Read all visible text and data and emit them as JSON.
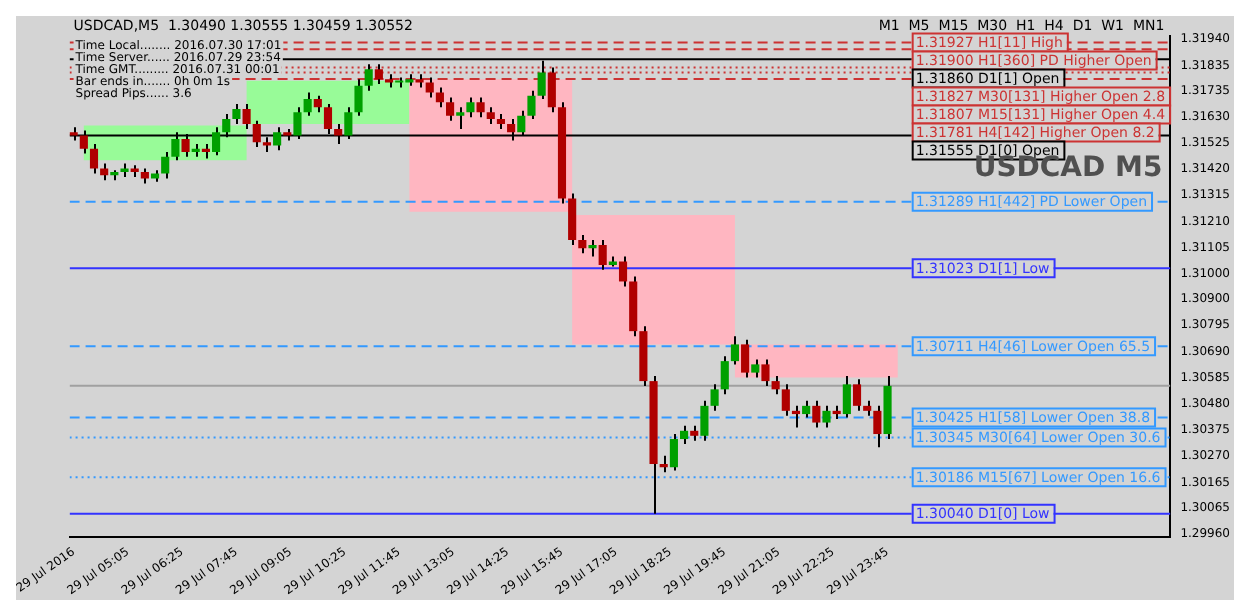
{
  "chart_data": {
    "type": "candlestick",
    "title": "USDCAD,M5  1.30490 1.30555 1.30459 1.30552",
    "annotations": [
      "Time Local........ 2016.07.30 17:01",
      "Time Server...... 2016.07.29 23:54",
      "Time GMT......... 2016.07.31 00:01",
      "Bar ends in....... 0h 0m 1s",
      "Spread Pips...... 3.6",
      "M1  M5  M15  M30  H1  H4  D1  W1  MN1",
      "USDCAD M5"
    ],
    "x": [
      "2016-07-29T03:45",
      "2016-07-29T04:00",
      "2016-07-29T04:15",
      "2016-07-29T04:30",
      "2016-07-29T04:45",
      "2016-07-29T05:00",
      "2016-07-29T05:15",
      "2016-07-29T05:30",
      "2016-07-29T05:45",
      "2016-07-29T06:00",
      "2016-07-29T06:15",
      "2016-07-29T06:30",
      "2016-07-29T06:45",
      "2016-07-29T07:00",
      "2016-07-29T07:15",
      "2016-07-29T07:30",
      "2016-07-29T07:45",
      "2016-07-29T08:00",
      "2016-07-29T08:15",
      "2016-07-29T08:30",
      "2016-07-29T08:45",
      "2016-07-29T09:00",
      "2016-07-29T09:15",
      "2016-07-29T09:30",
      "2016-07-29T09:45",
      "2016-07-29T10:00",
      "2016-07-29T10:15",
      "2016-07-29T10:30",
      "2016-07-29T10:45",
      "2016-07-29T11:00",
      "2016-07-29T11:15",
      "2016-07-29T11:30",
      "2016-07-29T11:45",
      "2016-07-29T12:00",
      "2016-07-29T12:15",
      "2016-07-29T12:30",
      "2016-07-29T12:45",
      "2016-07-29T13:00",
      "2016-07-29T13:15",
      "2016-07-29T13:30",
      "2016-07-29T13:45",
      "2016-07-29T14:00",
      "2016-07-29T14:15",
      "2016-07-29T14:30",
      "2016-07-29T14:45",
      "2016-07-29T15:00",
      "2016-07-29T15:15",
      "2016-07-29T15:30",
      "2016-07-29T15:45",
      "2016-07-29T16:00",
      "2016-07-29T16:15",
      "2016-07-29T16:30",
      "2016-07-29T16:45",
      "2016-07-29T17:00",
      "2016-07-29T17:15",
      "2016-07-29T17:30",
      "2016-07-29T17:45",
      "2016-07-29T18:00",
      "2016-07-29T18:15",
      "2016-07-29T18:30",
      "2016-07-29T18:45",
      "2016-07-29T19:00",
      "2016-07-29T19:15",
      "2016-07-29T19:30",
      "2016-07-29T19:45",
      "2016-07-29T20:00",
      "2016-07-29T20:15",
      "2016-07-29T20:30",
      "2016-07-29T20:45",
      "2016-07-29T21:00",
      "2016-07-29T21:15",
      "2016-07-29T21:30",
      "2016-07-29T21:45",
      "2016-07-29T22:00",
      "2016-07-29T22:15",
      "2016-07-29T22:30",
      "2016-07-29T22:45",
      "2016-07-29T23:00",
      "2016-07-29T23:15",
      "2016-07-29T23:30",
      "2016-07-29T23:45"
    ],
    "ohlc": [
      [
        1.31568,
        1.31588,
        1.31535,
        1.31555
      ],
      [
        1.31555,
        1.31575,
        1.31482,
        1.31501
      ],
      [
        1.31501,
        1.31521,
        1.31402,
        1.31422
      ],
      [
        1.31422,
        1.31442,
        1.31375,
        1.31395
      ],
      [
        1.31395,
        1.31415,
        1.31375,
        1.31408
      ],
      [
        1.31408,
        1.31442,
        1.31388,
        1.31422
      ],
      [
        1.31422,
        1.31435,
        1.31388,
        1.31408
      ],
      [
        1.31408,
        1.31422,
        1.31362,
        1.31382
      ],
      [
        1.31382,
        1.31415,
        1.31369,
        1.31402
      ],
      [
        1.31402,
        1.31488,
        1.31382,
        1.31469
      ],
      [
        1.31469,
        1.31568,
        1.31455,
        1.31541
      ],
      [
        1.31541,
        1.31561,
        1.31469,
        1.31488
      ],
      [
        1.31488,
        1.31521,
        1.31469,
        1.31501
      ],
      [
        1.31501,
        1.31521,
        1.31462,
        1.31488
      ],
      [
        1.31488,
        1.31588,
        1.31475,
        1.31568
      ],
      [
        1.31568,
        1.31641,
        1.31548,
        1.31621
      ],
      [
        1.31621,
        1.31681,
        1.31601,
        1.31661
      ],
      [
        1.31661,
        1.31681,
        1.31581,
        1.31601
      ],
      [
        1.31601,
        1.31614,
        1.31508,
        1.31528
      ],
      [
        1.31528,
        1.31548,
        1.31488,
        1.31515
      ],
      [
        1.31515,
        1.31588,
        1.31495,
        1.31568
      ],
      [
        1.31568,
        1.31581,
        1.31535,
        1.31555
      ],
      [
        1.31555,
        1.31668,
        1.31541,
        1.31648
      ],
      [
        1.31648,
        1.31727,
        1.31634,
        1.31701
      ],
      [
        1.31701,
        1.31714,
        1.31648,
        1.31668
      ],
      [
        1.31668,
        1.31681,
        1.31561,
        1.31581
      ],
      [
        1.31581,
        1.31601,
        1.31521,
        1.31555
      ],
      [
        1.31555,
        1.31668,
        1.31541,
        1.31648
      ],
      [
        1.31648,
        1.3178,
        1.31634,
        1.31754
      ],
      [
        1.31754,
        1.3184,
        1.31734,
        1.3182
      ],
      [
        1.3182,
        1.3184,
        1.31761,
        1.3178
      ],
      [
        1.3178,
        1.318,
        1.31747,
        1.31767
      ],
      [
        1.31767,
        1.31787,
        1.31747,
        1.31767
      ],
      [
        1.31767,
        1.318,
        1.31754,
        1.3178
      ],
      [
        1.3178,
        1.318,
        1.31747,
        1.31767
      ],
      [
        1.31767,
        1.31787,
        1.31707,
        1.31727
      ],
      [
        1.31727,
        1.31747,
        1.31668,
        1.31688
      ],
      [
        1.31688,
        1.31707,
        1.31614,
        1.31634
      ],
      [
        1.31634,
        1.31668,
        1.31581,
        1.31648
      ],
      [
        1.31648,
        1.31707,
        1.31628,
        1.31688
      ],
      [
        1.31688,
        1.31707,
        1.31628,
        1.31648
      ],
      [
        1.31648,
        1.31668,
        1.31601,
        1.31621
      ],
      [
        1.31621,
        1.31641,
        1.31581,
        1.31601
      ],
      [
        1.31601,
        1.31621,
        1.31535,
        1.31568
      ],
      [
        1.31568,
        1.31654,
        1.31555,
        1.31634
      ],
      [
        1.31634,
        1.31734,
        1.31621,
        1.31714
      ],
      [
        1.31714,
        1.31854,
        1.31701,
        1.31807
      ],
      [
        1.31807,
        1.31827,
        1.31648,
        1.31668
      ],
      [
        1.31668,
        1.31688,
        1.31282,
        1.31302
      ],
      [
        1.31302,
        1.31322,
        1.31116,
        1.31136
      ],
      [
        1.31136,
        1.31156,
        1.31083,
        1.31103
      ],
      [
        1.31103,
        1.31136,
        1.3107,
        1.31116
      ],
      [
        1.31116,
        1.31136,
        1.31017,
        1.31036
      ],
      [
        1.31036,
        1.3107,
        1.3103,
        1.3105
      ],
      [
        1.3105,
        1.3107,
        1.3095,
        1.3097
      ],
      [
        1.3097,
        1.3099,
        1.30751,
        1.30771
      ],
      [
        1.30771,
        1.30791,
        1.30551,
        1.30571
      ],
      [
        1.30571,
        1.30591,
        1.3004,
        1.30239
      ],
      [
        1.30239,
        1.30272,
        1.30206,
        1.30226
      ],
      [
        1.30226,
        1.30359,
        1.30213,
        1.30339
      ],
      [
        1.30339,
        1.30392,
        1.30319,
        1.30372
      ],
      [
        1.30372,
        1.30392,
        1.30332,
        1.30352
      ],
      [
        1.30352,
        1.30492,
        1.30332,
        1.30472
      ],
      [
        1.30472,
        1.30558,
        1.30452,
        1.30538
      ],
      [
        1.30538,
        1.30671,
        1.30518,
        1.30651
      ],
      [
        1.30651,
        1.30751,
        1.30638,
        1.30718
      ],
      [
        1.30718,
        1.30737,
        1.30585,
        1.30605
      ],
      [
        1.30605,
        1.30658,
        1.30585,
        1.30638
      ],
      [
        1.30638,
        1.30658,
        1.30551,
        1.30571
      ],
      [
        1.30571,
        1.30591,
        1.30518,
        1.30538
      ],
      [
        1.30538,
        1.30558,
        1.30432,
        1.30452
      ],
      [
        1.30452,
        1.30472,
        1.30385,
        1.30439
      ],
      [
        1.30439,
        1.30492,
        1.30425,
        1.30472
      ],
      [
        1.30472,
        1.30492,
        1.30385,
        1.30405
      ],
      [
        1.30405,
        1.30472,
        1.30385,
        1.30452
      ],
      [
        1.30452,
        1.30472,
        1.30419,
        1.30439
      ],
      [
        1.30439,
        1.30591,
        1.30425,
        1.30558
      ],
      [
        1.30558,
        1.30578,
        1.30452,
        1.30472
      ],
      [
        1.30472,
        1.30492,
        1.30432,
        1.30452
      ],
      [
        1.30452,
        1.30472,
        1.30306,
        1.30359
      ],
      [
        1.30359,
        1.30591,
        1.30339,
        1.30552
      ]
    ],
    "series": [
      {
        "type": "bar",
        "x": [
          "2016-07-29T06:00",
          "2016-07-29T10:00",
          "2016-07-29T14:00",
          "2016-07-29T18:00",
          "2016-07-29T22:00"
        ],
        "base": [
          1.31455,
          1.31601,
          1.31249,
          1.30718,
          1.30585
        ],
        "values": [
          0.0014,
          0.00173,
          0.00531,
          0.00518,
          0.00133
        ],
        "colors": [
          "#98fb98",
          "#98fb98",
          "#ffb6c1",
          "#ffb6c1",
          "#ffb6c1"
        ]
      }
    ],
    "xlim": [
      "2016-07-29T03:39",
      "2016-07-30T06:42"
    ],
    "xticks": [
      {
        "value": "2016-07-29T03:45",
        "label": "29 Jul 2016"
      },
      {
        "value": "2016-07-29T05:05",
        "label": "29 Jul 05:05"
      },
      {
        "value": "2016-07-29T06:25",
        "label": "29 Jul 06:25"
      },
      {
        "value": "2016-07-29T07:45",
        "label": "29 Jul 07:45"
      },
      {
        "value": "2016-07-29T09:05",
        "label": "29 Jul 09:05"
      },
      {
        "value": "2016-07-29T10:25",
        "label": "29 Jul 10:25"
      },
      {
        "value": "2016-07-29T11:45",
        "label": "29 Jul 11:45"
      },
      {
        "value": "2016-07-29T13:05",
        "label": "29 Jul 13:05"
      },
      {
        "value": "2016-07-29T14:25",
        "label": "29 Jul 14:25"
      },
      {
        "value": "2016-07-29T15:45",
        "label": "29 Jul 15:45"
      },
      {
        "value": "2016-07-29T17:05",
        "label": "29 Jul 17:05"
      },
      {
        "value": "2016-07-29T18:25",
        "label": "29 Jul 18:25"
      },
      {
        "value": "2016-07-29T19:45",
        "label": "29 Jul 19:45"
      },
      {
        "value": "2016-07-29T21:05",
        "label": "29 Jul 21:05"
      },
      {
        "value": "2016-07-29T22:25",
        "label": "29 Jul 22:25"
      },
      {
        "value": "2016-07-29T23:45",
        "label": "29 Jul 23:45"
      }
    ],
    "ylim": [
      1.29947,
      1.31953
    ],
    "yticks": [
      {
        "value": 1.2996,
        "label": "1.29960"
      },
      {
        "value": 1.30065,
        "label": "1.30065"
      },
      {
        "value": 1.30165,
        "label": "1.30165"
      },
      {
        "value": 1.3027,
        "label": "1.30270"
      },
      {
        "value": 1.30375,
        "label": "1.30375"
      },
      {
        "value": 1.3048,
        "label": "1.30480"
      },
      {
        "value": 1.30585,
        "label": "1.30585"
      },
      {
        "value": 1.3069,
        "label": "1.30690"
      },
      {
        "value": 1.30795,
        "label": "1.30795"
      },
      {
        "value": 1.309,
        "label": "1.30900"
      },
      {
        "value": 1.31,
        "label": "1.31000"
      },
      {
        "value": 1.31105,
        "label": "1.31105"
      },
      {
        "value": 1.3121,
        "label": "1.31210"
      },
      {
        "value": 1.31315,
        "label": "1.31315"
      },
      {
        "value": 1.3142,
        "label": "1.31420"
      },
      {
        "value": 1.31525,
        "label": "1.31525"
      },
      {
        "value": 1.3163,
        "label": "1.31630"
      },
      {
        "value": 1.31735,
        "label": "1.31735"
      },
      {
        "value": 1.31835,
        "label": "1.31835"
      },
      {
        "value": 1.3194,
        "label": "1.31940"
      }
    ],
    "ref_lines": [
      {
        "axis": "y",
        "value": 1.31927,
        "label": "1.31927 H1[11] High",
        "color": "#cc3333",
        "line_style": "dashed"
      },
      {
        "axis": "y",
        "value": 1.319,
        "label": "1.31900 H1[360] PD Higher Open",
        "color": "#cc3333",
        "line_style": "dashed"
      },
      {
        "axis": "y",
        "value": 1.3186,
        "label": "1.31860 D1[1] Open",
        "color": "#000000",
        "line_style": "solid"
      },
      {
        "axis": "y",
        "value": 1.31827,
        "label": "1.31827 M30[131] Higher Open 2.8",
        "color": "#cc3333",
        "line_style": "dotted"
      },
      {
        "axis": "y",
        "value": 1.31807,
        "label": "1.31807 M15[131] Higher Open 4.4",
        "color": "#cc3333",
        "line_style": "dotted"
      },
      {
        "axis": "y",
        "value": 1.31781,
        "label": "1.31781 H4[142] Higher Open 8.2",
        "color": "#cc3333",
        "line_style": "dashed"
      },
      {
        "axis": "y",
        "value": 1.31555,
        "label": "1.31555 D1[0] Open",
        "color": "#000000",
        "line_style": "solid"
      },
      {
        "axis": "y",
        "value": 1.31289,
        "label": "1.31289 H1[442] PD Lower Open",
        "color": "#3399ff",
        "line_style": "dashed"
      },
      {
        "axis": "y",
        "value": 1.31023,
        "label": "1.31023 D1[1] Low",
        "color": "#3333ff",
        "line_style": "solid"
      },
      {
        "axis": "y",
        "value": 1.30711,
        "label": "1.30711 H4[46] Lower Open 65.5",
        "color": "#3399ff",
        "line_style": "dashed"
      },
      {
        "axis": "y",
        "value": 1.30552,
        "label": null,
        "color": "#a0a0a0",
        "line_style": "solid"
      },
      {
        "axis": "y",
        "value": 1.30425,
        "label": "1.30425 H1[58] Lower Open 38.8",
        "color": "#3399ff",
        "line_style": "dashed"
      },
      {
        "axis": "y",
        "value": 1.30345,
        "label": "1.30345 M30[64] Lower Open 30.6",
        "color": "#3399ff",
        "line_style": "dotted"
      },
      {
        "axis": "y",
        "value": 1.30186,
        "label": "1.30186 M15[67] Lower Open 16.6",
        "color": "#3399ff",
        "line_style": "dotted"
      },
      {
        "axis": "y",
        "value": 1.3004,
        "label": "1.30040 D1[0] Low",
        "color": "#3333ff",
        "line_style": "solid"
      }
    ],
    "grid": false,
    "legend": false
  }
}
